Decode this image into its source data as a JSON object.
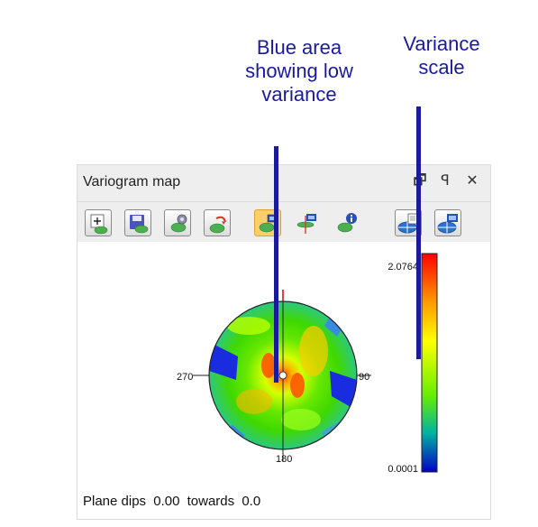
{
  "annotations": {
    "low_variance": "Blue area\nshowing low\nvariance",
    "variance_scale": "Variance\nscale"
  },
  "panel": {
    "title": "Variogram map",
    "window_buttons": {
      "restore": "🗗",
      "pin": "ꟼ",
      "close": "✕"
    }
  },
  "toolbar": [
    {
      "icon": "new-variogram-icon",
      "active": false
    },
    {
      "icon": "save-variogram-icon",
      "active": false
    },
    {
      "icon": "settings-variogram-icon",
      "active": false
    },
    {
      "icon": "reset-variogram-icon",
      "active": false
    },
    {
      "icon": "map-view-icon",
      "active": true
    },
    {
      "icon": "plane-view-icon",
      "active": false
    },
    {
      "icon": "variogram-info-icon",
      "active": false
    },
    {
      "icon": "report-icon",
      "active": false
    },
    {
      "icon": "screen-plane-icon",
      "active": false
    }
  ],
  "map": {
    "compass": {
      "north": "",
      "east": "90",
      "south": "180",
      "west": "270"
    },
    "scale_max": "2.0764",
    "scale_min": "0.0001"
  },
  "status": {
    "label_plane_dips": "Plane dips",
    "dip": "0.00",
    "label_towards": "towards",
    "azimuth": "0.0"
  },
  "colors": {
    "annotation": "#1a1aa0",
    "high": "#ff0000",
    "mid": "#ffff00",
    "low": "#0000c8",
    "active_tool": "#ffcf6a"
  }
}
